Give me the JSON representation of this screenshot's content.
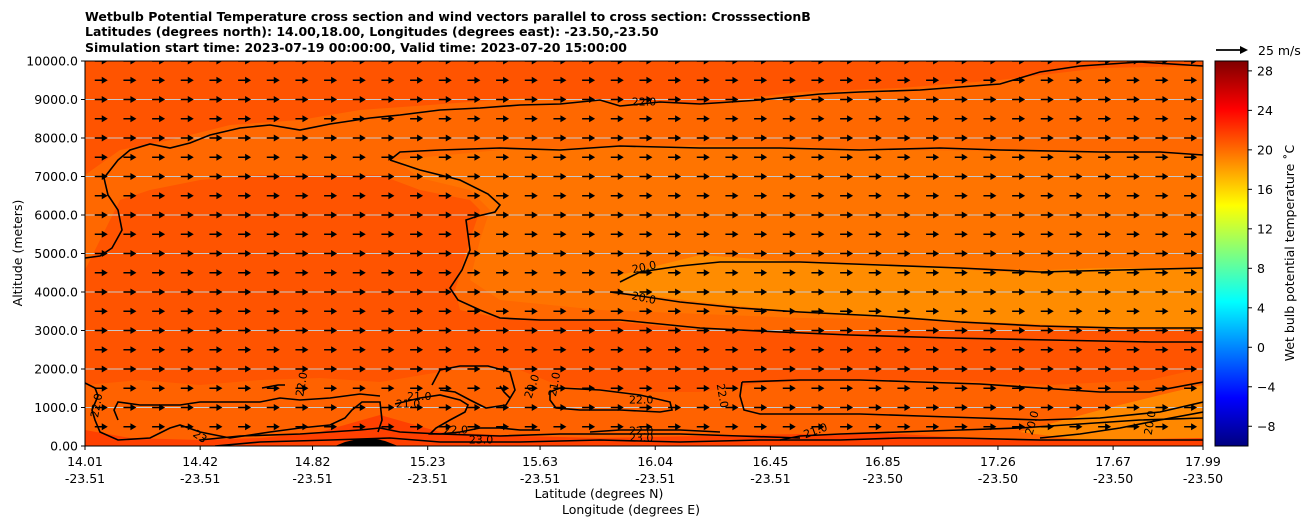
{
  "chart_data": {
    "type": "contour",
    "title_lines": [
      "Wetbulb Potential Temperature cross section and wind vectors parallel to cross section: CrosssectionB",
      "Latitudes (degrees north): 14.00,18.00, Longitudes (degrees east): -23.50,-23.50",
      "Simulation start time: 2023-07-19 00:00:00, Valid time: 2023-07-20 15:00:00"
    ],
    "xlabel_lines": [
      "Latitude (degrees N)",
      "Longitude (degrees E)"
    ],
    "ylabel": "Altitude (meters)",
    "xlim": [
      14.01,
      17.99
    ],
    "ylim": [
      0,
      10000
    ],
    "x_ticks": [
      {
        "lat": "14.01",
        "lon": "-23.51",
        "value": 14.01
      },
      {
        "lat": "14.42",
        "lon": "-23.51",
        "value": 14.42
      },
      {
        "lat": "14.82",
        "lon": "-23.51",
        "value": 14.82
      },
      {
        "lat": "15.23",
        "lon": "-23.51",
        "value": 15.23
      },
      {
        "lat": "15.63",
        "lon": "-23.51",
        "value": 15.63
      },
      {
        "lat": "16.04",
        "lon": "-23.51",
        "value": 16.04
      },
      {
        "lat": "16.45",
        "lon": "-23.51",
        "value": 16.45
      },
      {
        "lat": "16.85",
        "lon": "-23.50",
        "value": 16.85
      },
      {
        "lat": "17.26",
        "lon": "-23.50",
        "value": 17.26
      },
      {
        "lat": "17.67",
        "lon": "-23.50",
        "value": 17.67
      },
      {
        "lat": "17.99",
        "lon": "-23.50",
        "value": 17.99
      }
    ],
    "y_ticks": [
      {
        "label": "0.00",
        "value": 0
      },
      {
        "label": "1000.0",
        "value": 1000
      },
      {
        "label": "2000.0",
        "value": 2000
      },
      {
        "label": "3000.0",
        "value": 3000
      },
      {
        "label": "4000.0",
        "value": 4000
      },
      {
        "label": "5000.0",
        "value": 5000
      },
      {
        "label": "6000.0",
        "value": 6000
      },
      {
        "label": "7000.0",
        "value": 7000
      },
      {
        "label": "8000.0",
        "value": 8000
      },
      {
        "label": "9000.0",
        "value": 9000
      },
      {
        "label": "10000.0",
        "value": 10000
      }
    ],
    "gridlines_y": [
      1000,
      2000,
      3000,
      4000,
      5000,
      6000,
      7000,
      8000,
      9000
    ],
    "colorbar": {
      "label": "Wet bulb potential temperature $^\\circ$C",
      "label_display": "Wet bulb potential temperature ˚C",
      "range": [
        -10,
        29
      ],
      "tick_labels": [
        "−8",
        "−4",
        "0",
        "4",
        "8",
        "12",
        "16",
        "20",
        "24",
        "28"
      ],
      "tick_values": [
        -8,
        -4,
        0,
        4,
        8,
        12,
        16,
        20,
        24,
        28
      ],
      "colormap": "jet",
      "colormap_stops": [
        "#00007f",
        "#0000ff",
        "#007fff",
        "#00ffff",
        "#7fff7f",
        "#ffff00",
        "#ff7f00",
        "#ff0000",
        "#7f0000"
      ]
    },
    "quiver_key": {
      "label": "25 m/s",
      "speed": 25
    },
    "wind_vectors": {
      "direction": "toward increasing latitude",
      "columns_count": 39,
      "levels_m": [
        500,
        1000,
        1500,
        2000,
        2500,
        3000,
        3500,
        4000,
        4500,
        5000,
        5500,
        6000,
        6500,
        7000,
        7500,
        8000,
        8500,
        9000,
        9500,
        10000
      ]
    },
    "field_regions": [
      {
        "name": "background",
        "value_c": 22.5,
        "color": "#ff5a00"
      },
      {
        "name": "upper-mid-region",
        "value_c": 21.0,
        "color": "#ff7a00"
      },
      {
        "name": "mid-level-tongue",
        "value_c": 20.0,
        "color": "#ff8a00"
      },
      {
        "name": "near-surface-warm",
        "value_c": 23.5,
        "color": "#ff4200"
      },
      {
        "name": "terrain",
        "value_c": null,
        "color": "#000000"
      }
    ],
    "contour_labels": [
      {
        "text": "22.0",
        "lat": 16.0,
        "alt_m": 8850,
        "angle": 0
      },
      {
        "text": "20.0",
        "lat": 16.0,
        "alt_m": 4550,
        "angle": -12
      },
      {
        "text": "20.0",
        "lat": 16.0,
        "alt_m": 3750,
        "angle": 12
      },
      {
        "text": "22.0",
        "lat": 14.05,
        "alt_m": 950,
        "angle": -80
      },
      {
        "text": "22.0",
        "lat": 14.78,
        "alt_m": 1500,
        "angle": -80
      },
      {
        "text": "21.0",
        "lat": 15.2,
        "alt_m": 1200,
        "angle": 0
      },
      {
        "text": "21.0",
        "lat": 15.16,
        "alt_m": 1000,
        "angle": 0
      },
      {
        "text": "22.0",
        "lat": 15.33,
        "alt_m": 330,
        "angle": 0
      },
      {
        "text": "23.0",
        "lat": 15.42,
        "alt_m": 60,
        "angle": 0
      },
      {
        "text": "20.0",
        "lat": 15.6,
        "alt_m": 1450,
        "angle": -70
      },
      {
        "text": "21.0",
        "lat": 15.68,
        "alt_m": 1500,
        "angle": -80
      },
      {
        "text": "22.0",
        "lat": 15.99,
        "alt_m": 1100,
        "angle": 0
      },
      {
        "text": "22.0",
        "lat": 15.99,
        "alt_m": 300,
        "angle": 0
      },
      {
        "text": "23.0",
        "lat": 15.99,
        "alt_m": 120,
        "angle": 0
      },
      {
        "text": "22.0",
        "lat": 16.28,
        "alt_m": 1200,
        "angle": 80
      },
      {
        "text": "21.0",
        "lat": 16.61,
        "alt_m": 300,
        "angle": -20
      },
      {
        "text": "20.0",
        "lat": 17.38,
        "alt_m": 500,
        "angle": -75
      },
      {
        "text": "20.0",
        "lat": 17.8,
        "alt_m": 500,
        "angle": -80
      },
      {
        "text": "23",
        "lat": 14.42,
        "alt_m": 150,
        "angle": 35
      }
    ]
  }
}
